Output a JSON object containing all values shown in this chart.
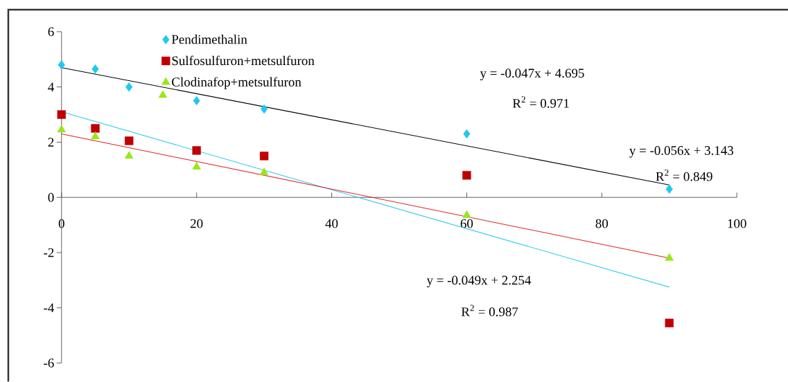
{
  "chart_data": {
    "type": "scatter",
    "x": [
      0,
      5,
      10,
      20,
      30,
      60,
      90
    ],
    "series": [
      {
        "name": "Pendimethalin",
        "color": "#1ec8f0",
        "marker": "diamond",
        "values": [
          4.8,
          4.65,
          4.0,
          3.5,
          3.2,
          2.3,
          0.3
        ]
      },
      {
        "name": "Sulfosulfuron+metsulfuron",
        "color": "#c00000",
        "marker": "square",
        "values": [
          3.0,
          2.5,
          2.05,
          1.7,
          1.5,
          0.8,
          -4.55
        ]
      },
      {
        "name": "Clodinafop+metsulfuron",
        "color": "#99e619",
        "marker": "triangle",
        "x": [
          0,
          5,
          10,
          15,
          20,
          30,
          60,
          90
        ],
        "values": [
          2.45,
          2.2,
          1.5,
          3.7,
          1.1,
          0.9,
          -0.65,
          -2.2
        ]
      },
      {
        "type": "line",
        "color": "#000000",
        "marker": "none",
        "x": [
          0,
          90
        ],
        "values": [
          4.7,
          0.45
        ]
      },
      {
        "type": "line",
        "color": "#33ccee",
        "marker": "none",
        "x": [
          0,
          90
        ],
        "values": [
          3.1,
          -3.25
        ]
      },
      {
        "type": "line",
        "color": "#e02020",
        "marker": "none",
        "x": [
          0,
          90
        ],
        "values": [
          2.3,
          -2.2
        ]
      }
    ],
    "xlim": [
      0,
      100
    ],
    "ylim": [
      -6,
      6
    ],
    "xticks": [
      0,
      20,
      40,
      60,
      80,
      100
    ],
    "yticks": [
      -6,
      -4,
      -2,
      0,
      2,
      4,
      6
    ],
    "grid": false,
    "legend": "top left",
    "annotations": [
      "y = -0.047x + 4.695",
      "R$^{2}$ = 0.971",
      "y = -0.056x + 3.143",
      "R$^{2}$ = 0.849",
      "y = -0.049x + 2.254",
      "R$^{2}$ = 0.987"
    ]
  }
}
